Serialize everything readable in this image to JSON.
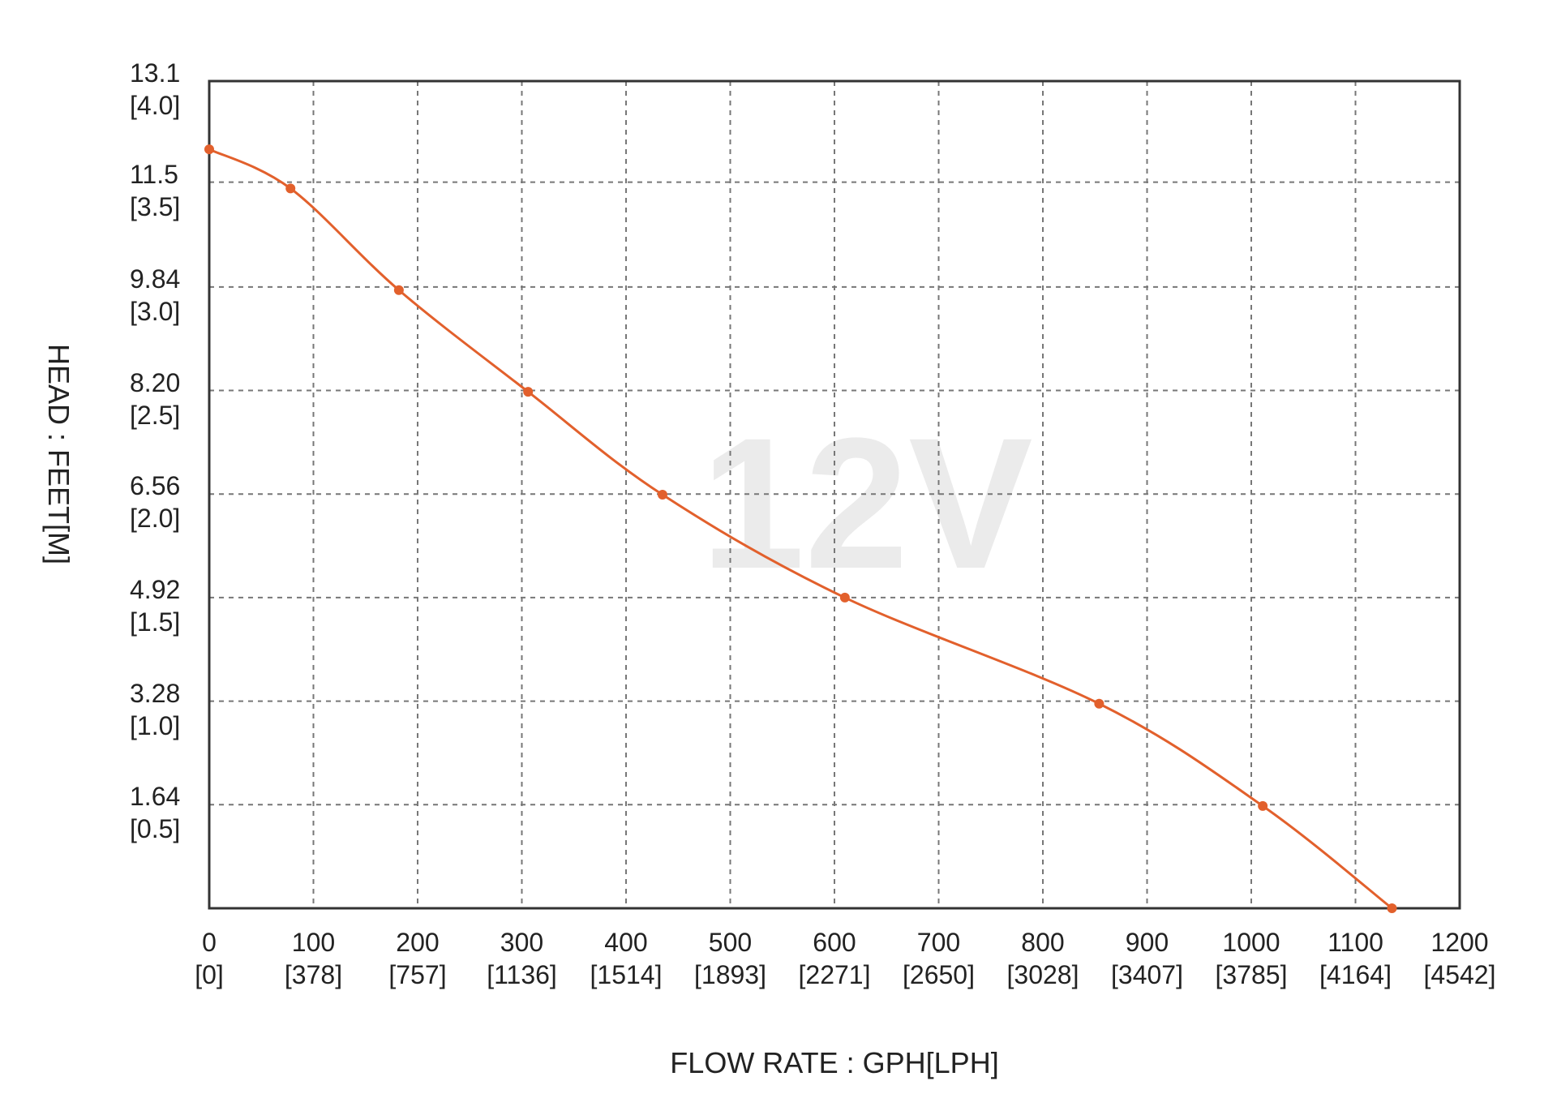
{
  "chart_data": {
    "type": "line",
    "watermark": "12V",
    "x_label": "FLOW RATE : GPH[LPH]",
    "y_label": "HEAD : FEET[M]",
    "xlim": [
      0,
      1200
    ],
    "ylim": [
      0,
      13.1
    ],
    "xticks": [
      {
        "value": 0,
        "label": "0\n[0]"
      },
      {
        "value": 100,
        "label": "100\n[378]"
      },
      {
        "value": 200,
        "label": "200\n[757]"
      },
      {
        "value": 300,
        "label": "300\n[1136]"
      },
      {
        "value": 400,
        "label": "400\n[1514]"
      },
      {
        "value": 500,
        "label": "500\n[1893]"
      },
      {
        "value": 600,
        "label": "600\n[2271]"
      },
      {
        "value": 700,
        "label": "700\n[2650]"
      },
      {
        "value": 800,
        "label": "800\n[3028]"
      },
      {
        "value": 900,
        "label": "900\n[3407]"
      },
      {
        "value": 1000,
        "label": "1000\n[3785]"
      },
      {
        "value": 1100,
        "label": "1100\n[4164]"
      },
      {
        "value": 1200,
        "label": "1200\n[4542]"
      }
    ],
    "yticks": [
      {
        "value": 1.64,
        "label": "1.64\n[0.5]"
      },
      {
        "value": 3.28,
        "label": "3.28\n[1.0]"
      },
      {
        "value": 4.92,
        "label": "4.92\n[1.5]"
      },
      {
        "value": 6.56,
        "label": "6.56\n[2.0]"
      },
      {
        "value": 8.2,
        "label": "8.20\n[2.5]"
      },
      {
        "value": 9.84,
        "label": "9.84\n[3.0]"
      },
      {
        "value": 11.5,
        "label": "11.5\n[3.5]"
      },
      {
        "value": 13.1,
        "label": "13.1\n[4.0]"
      }
    ],
    "grid": true,
    "series": [
      {
        "color": "#e2602c",
        "x": [
          0,
          78,
          182,
          306,
          435,
          610,
          854,
          1011,
          1135
        ],
        "values": [
          12.02,
          11.4,
          9.79,
          8.18,
          6.55,
          4.92,
          3.24,
          1.62,
          0
        ]
      }
    ]
  }
}
